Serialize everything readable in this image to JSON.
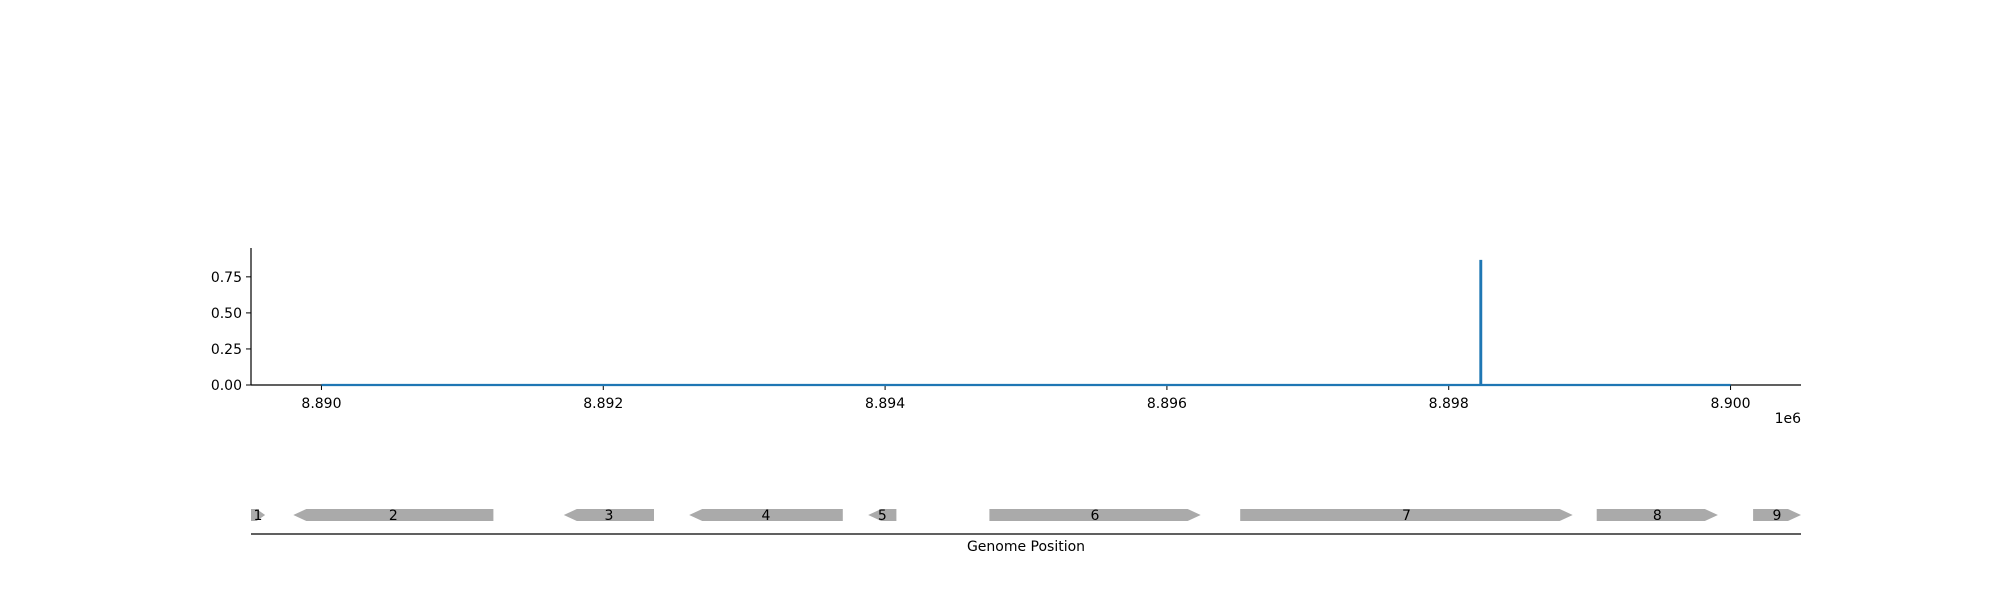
{
  "chart_data": [
    {
      "type": "line",
      "xlim": [
        8889500,
        8900500
      ],
      "ylim": [
        0,
        0.95
      ],
      "x_ticks": [
        8890000,
        8892000,
        8894000,
        8896000,
        8898000,
        8900000
      ],
      "x_tick_labels": [
        "8.890",
        "8.892",
        "8.894",
        "8.896",
        "8.898",
        "8.900"
      ],
      "x_offset_label": "1e6",
      "y_ticks": [
        0.0,
        0.25,
        0.5,
        0.75
      ],
      "y_tick_labels": [
        "0.00",
        "0.25",
        "0.50",
        "0.75"
      ],
      "series": [
        {
          "color": "#1f77b4",
          "points": [
            [
              8890000,
              0
            ],
            [
              8898225,
              0
            ],
            [
              8898225,
              0.86
            ],
            [
              8898230,
              0.86
            ],
            [
              8898230,
              0
            ],
            [
              8900000,
              0
            ]
          ]
        }
      ]
    },
    {
      "type": "gene-track",
      "xlabel": "Genome Position",
      "xlim": [
        8889500,
        8900500
      ],
      "color": "#aaaaaa",
      "genes": [
        {
          "label": "1",
          "start": 8889500,
          "end": 8889600,
          "strand": "+"
        },
        {
          "label": "2",
          "start": 8889800,
          "end": 8891220,
          "strand": "-"
        },
        {
          "label": "3",
          "start": 8891720,
          "end": 8892360,
          "strand": "-"
        },
        {
          "label": "4",
          "start": 8892610,
          "end": 8893700,
          "strand": "-"
        },
        {
          "label": "5",
          "start": 8893880,
          "end": 8894080,
          "strand": "-"
        },
        {
          "label": "6",
          "start": 8894740,
          "end": 8896240,
          "strand": "+"
        },
        {
          "label": "7",
          "start": 8896520,
          "end": 8898880,
          "strand": "+"
        },
        {
          "label": "8",
          "start": 8899050,
          "end": 8899910,
          "strand": "+"
        },
        {
          "label": "9",
          "start": 8900160,
          "end": 8900500,
          "strand": "+"
        }
      ]
    }
  ]
}
